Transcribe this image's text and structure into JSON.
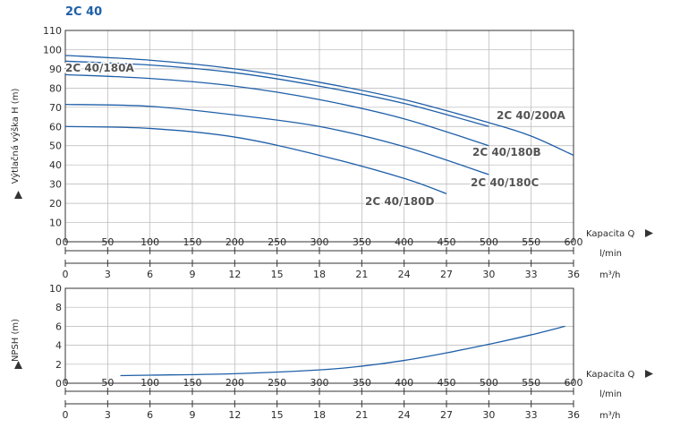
{
  "chart_data": [
    {
      "type": "line",
      "title": "2C 40",
      "ylabel": "Výtlačná výška H (m)",
      "xlabel": "Kapacita Q",
      "x_unit": "l/min",
      "x2_unit": "m³/h",
      "xlim": [
        0,
        600
      ],
      "ylim": [
        0,
        110
      ],
      "xticks": [
        "0",
        "50",
        "100",
        "150",
        "200",
        "250",
        "300",
        "350",
        "400",
        "450",
        "500",
        "550",
        "600"
      ],
      "x2ticks": [
        "0",
        "3",
        "6",
        "9",
        "12",
        "15",
        "18",
        "21",
        "24",
        "27",
        "30",
        "33",
        "36"
      ],
      "yticks": [
        "0",
        "10",
        "20",
        "30",
        "40",
        "50",
        "60",
        "70",
        "80",
        "90",
        "100",
        "110"
      ],
      "grid": true,
      "series": [
        {
          "name": "2C 40/200A",
          "x": [
            0,
            100,
            200,
            300,
            400,
            500,
            550,
            600
          ],
          "y": [
            97,
            94.5,
            90,
            83,
            74,
            62,
            55,
            45
          ]
        },
        {
          "name": "2C 40/180A",
          "x": [
            0,
            100,
            200,
            300,
            400,
            500
          ],
          "y": [
            94,
            92,
            88,
            81,
            72,
            60
          ]
        },
        {
          "name": "2C 40/180B",
          "x": [
            0,
            100,
            200,
            300,
            400,
            500
          ],
          "y": [
            87,
            85,
            81,
            74,
            64,
            50
          ]
        },
        {
          "name": "2C 40/180C",
          "x": [
            0,
            100,
            200,
            300,
            400,
            500
          ],
          "y": [
            71.5,
            70.5,
            66,
            60,
            49.5,
            35
          ]
        },
        {
          "name": "2C 40/180D",
          "x": [
            0,
            100,
            200,
            300,
            400,
            450
          ],
          "y": [
            60,
            59,
            54.5,
            45,
            33,
            25
          ]
        }
      ]
    },
    {
      "type": "line",
      "ylabel": "NPSH (m)",
      "xlabel": "Kapacita Q",
      "x_unit": "l/min",
      "x2_unit": "m³/h",
      "xlim": [
        0,
        600
      ],
      "ylim": [
        0,
        10
      ],
      "xticks": [
        "0",
        "50",
        "100",
        "150",
        "200",
        "250",
        "300",
        "350",
        "400",
        "450",
        "500",
        "550",
        "600"
      ],
      "x2ticks": [
        "0",
        "3",
        "6",
        "9",
        "12",
        "15",
        "18",
        "21",
        "24",
        "27",
        "30",
        "33",
        "36"
      ],
      "yticks": [
        "0",
        "2",
        "4",
        "6",
        "8",
        "10"
      ],
      "grid": true,
      "series": [
        {
          "x": [
            65,
            100,
            200,
            300,
            350,
            400,
            450,
            500,
            550,
            590
          ],
          "y": [
            0.8,
            0.85,
            1.0,
            1.4,
            1.8,
            2.4,
            3.2,
            4.1,
            5.1,
            6.0
          ]
        }
      ]
    }
  ],
  "colors": {
    "curve": "#1f5fa8",
    "title": "#1f5fa8",
    "grid": "#b5b5b5",
    "frame": "#333333",
    "label": "#555555"
  }
}
